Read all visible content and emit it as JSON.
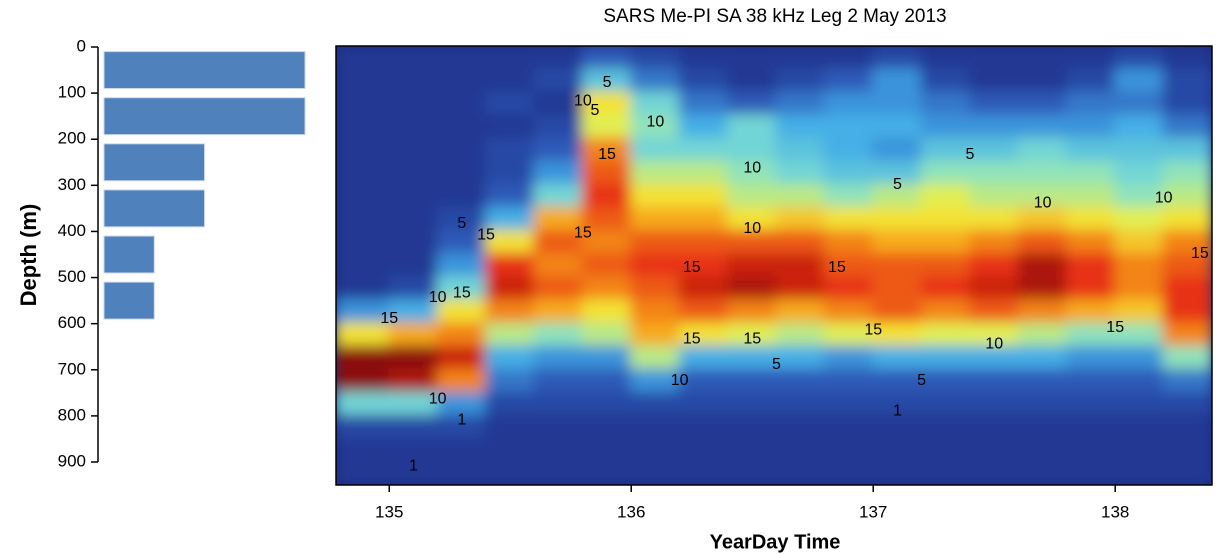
{
  "chart_data": [
    {
      "type": "hbar",
      "ylabel": "Depth (m)",
      "ylim": [
        0,
        900
      ],
      "yticks": [
        0,
        100,
        200,
        300,
        400,
        500,
        600,
        700,
        800,
        900
      ],
      "y": [
        50,
        150,
        250,
        350,
        450,
        550
      ],
      "values": [
        4,
        4,
        2,
        2,
        1,
        1
      ],
      "color": "#4f81bd"
    },
    {
      "type": "heatmap",
      "title": "SARS Me-PI SA 38 kHz Leg 2 May 2013",
      "xlabel": "YearDay Time",
      "xlim": [
        134.78,
        138.4
      ],
      "xticks": [
        135,
        136,
        137,
        138
      ],
      "ylim": [
        0,
        950
      ],
      "zlim": [
        0,
        20
      ],
      "colormap": [
        "#1b2a80",
        "#2d56b5",
        "#3fa9e8",
        "#7fe0d0",
        "#f2f23c",
        "#f7a21a",
        "#e62a14",
        "#8b0a0a"
      ],
      "x": [
        134.9,
        135.1,
        135.3,
        135.5,
        135.7,
        135.9,
        136.1,
        136.3,
        136.5,
        136.7,
        136.9,
        137.1,
        137.3,
        137.5,
        137.7,
        137.9,
        138.1,
        138.3
      ],
      "y": [
        25,
        75,
        125,
        175,
        225,
        275,
        325,
        375,
        425,
        475,
        525,
        575,
        625,
        675,
        725,
        775,
        825,
        875,
        925
      ],
      "z": [
        [
          1,
          1,
          1,
          1,
          1,
          1,
          1,
          1,
          1,
          1,
          1,
          5,
          12,
          20,
          20,
          8,
          2,
          1,
          1
        ],
        [
          1,
          1,
          1,
          1,
          1,
          1,
          1,
          1,
          1,
          1,
          2,
          6,
          14,
          20,
          19,
          8,
          2,
          1,
          1
        ],
        [
          1,
          1,
          1,
          1,
          1,
          1,
          1,
          2,
          3,
          5,
          8,
          12,
          15,
          18,
          15,
          5,
          2,
          1,
          1
        ],
        [
          1,
          1,
          2,
          1,
          2,
          2,
          3,
          6,
          12,
          17,
          18,
          15,
          10,
          6,
          4,
          2,
          1,
          1,
          1
        ],
        [
          1,
          2,
          1,
          2,
          3,
          5,
          8,
          14,
          16,
          15,
          16,
          14,
          9,
          5,
          3,
          2,
          1,
          1,
          1
        ],
        [
          3,
          7,
          12,
          11,
          15,
          16,
          17,
          16,
          15,
          16,
          15,
          12,
          10,
          5,
          3,
          2,
          1,
          1,
          1
        ],
        [
          2,
          4,
          8,
          9,
          8,
          10,
          12,
          14,
          16,
          17,
          16,
          15,
          14,
          10,
          5,
          2,
          1,
          1,
          1
        ],
        [
          1,
          2,
          4,
          6,
          8,
          10,
          12,
          14,
          16,
          17,
          18,
          16,
          12,
          6,
          3,
          2,
          1,
          1,
          1
        ],
        [
          1,
          1,
          3,
          8,
          8,
          9,
          10,
          12,
          16,
          18,
          19,
          15,
          11,
          6,
          3,
          2,
          1,
          1,
          1
        ],
        [
          1,
          2,
          4,
          6,
          7,
          8,
          10,
          13,
          16,
          18,
          18,
          14,
          10,
          6,
          3,
          2,
          1,
          1,
          1
        ],
        [
          1,
          3,
          5,
          6,
          6,
          7,
          9,
          12,
          15,
          16,
          17,
          15,
          11,
          5,
          3,
          2,
          1,
          1,
          1
        ],
        [
          2,
          5,
          5,
          6,
          5,
          7,
          10,
          12,
          14,
          16,
          16,
          16,
          12,
          6,
          3,
          2,
          1,
          1,
          1
        ],
        [
          1,
          2,
          4,
          5,
          7,
          9,
          11,
          12,
          14,
          16,
          17,
          15,
          11,
          6,
          3,
          2,
          1,
          1,
          1
        ],
        [
          1,
          1,
          3,
          5,
          7,
          9,
          10,
          12,
          15,
          17,
          18,
          16,
          11,
          6,
          3,
          2,
          1,
          1,
          1
        ],
        [
          1,
          1,
          3,
          5,
          8,
          9,
          10,
          13,
          16,
          19,
          19,
          15,
          10,
          6,
          3,
          2,
          1,
          1,
          1
        ],
        [
          1,
          2,
          4,
          5,
          7,
          9,
          10,
          12,
          15,
          17,
          17,
          14,
          9,
          5,
          3,
          2,
          1,
          1,
          1
        ],
        [
          2,
          5,
          4,
          6,
          7,
          8,
          9,
          11,
          13,
          15,
          15,
          13,
          9,
          5,
          3,
          2,
          1,
          1,
          1
        ],
        [
          1,
          2,
          2,
          4,
          7,
          9,
          10,
          12,
          15,
          16,
          17,
          17,
          15,
          9,
          4,
          2,
          1,
          1,
          1
        ]
      ],
      "annotations": [
        {
          "text": "5",
          "x": 135.9,
          "y": 80
        },
        {
          "text": "5",
          "x": 135.85,
          "y": 140
        },
        {
          "text": "10",
          "x": 135.8,
          "y": 120
        },
        {
          "text": "10",
          "x": 136.1,
          "y": 165
        },
        {
          "text": "15",
          "x": 135.9,
          "y": 235
        },
        {
          "text": "10",
          "x": 136.5,
          "y": 265
        },
        {
          "text": "5",
          "x": 137.1,
          "y": 300
        },
        {
          "text": "5",
          "x": 137.4,
          "y": 235
        },
        {
          "text": "10",
          "x": 137.7,
          "y": 340
        },
        {
          "text": "10",
          "x": 138.2,
          "y": 330
        },
        {
          "text": "15",
          "x": 135.4,
          "y": 410
        },
        {
          "text": "15",
          "x": 135.8,
          "y": 405
        },
        {
          "text": "5",
          "x": 135.3,
          "y": 385
        },
        {
          "text": "10",
          "x": 136.5,
          "y": 395
        },
        {
          "text": "15",
          "x": 136.25,
          "y": 480
        },
        {
          "text": "15",
          "x": 136.85,
          "y": 480
        },
        {
          "text": "15",
          "x": 138.35,
          "y": 450
        },
        {
          "text": "10",
          "x": 135.2,
          "y": 545
        },
        {
          "text": "15",
          "x": 135.3,
          "y": 535
        },
        {
          "text": "15",
          "x": 135.0,
          "y": 590
        },
        {
          "text": "15",
          "x": 136.5,
          "y": 635
        },
        {
          "text": "15",
          "x": 136.25,
          "y": 635
        },
        {
          "text": "15",
          "x": 137.0,
          "y": 615
        },
        {
          "text": "10",
          "x": 137.5,
          "y": 645
        },
        {
          "text": "15",
          "x": 138.0,
          "y": 610
        },
        {
          "text": "5",
          "x": 136.6,
          "y": 690
        },
        {
          "text": "10",
          "x": 136.2,
          "y": 725
        },
        {
          "text": "5",
          "x": 137.2,
          "y": 725
        },
        {
          "text": "10",
          "x": 135.2,
          "y": 765
        },
        {
          "text": "1",
          "x": 137.1,
          "y": 790
        },
        {
          "text": "1",
          "x": 135.3,
          "y": 810
        },
        {
          "text": "1",
          "x": 135.1,
          "y": 910
        }
      ]
    }
  ]
}
